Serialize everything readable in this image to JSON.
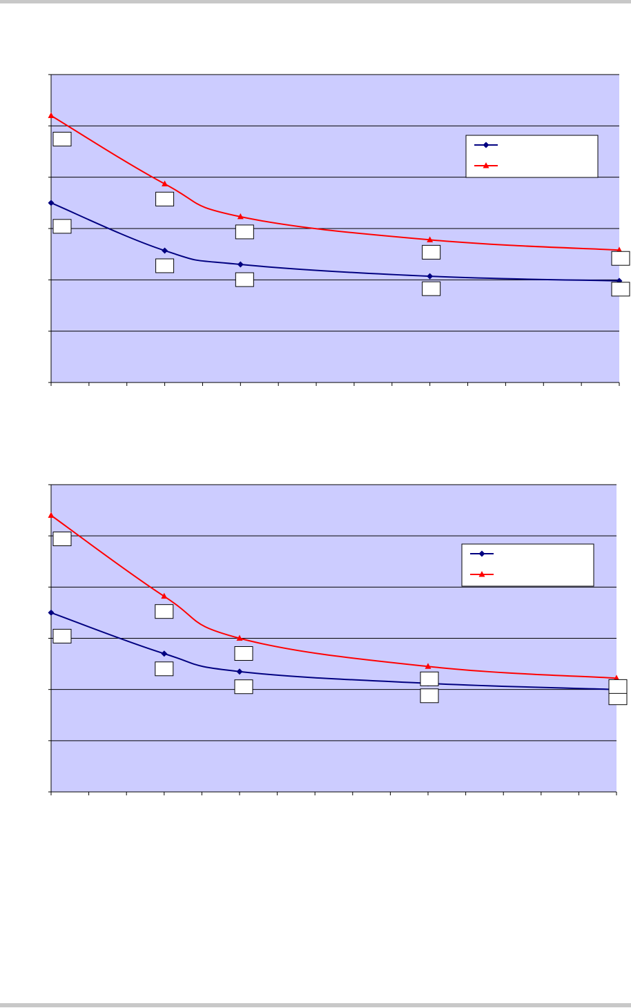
{
  "colors": {
    "plot_bg": "#ccccff",
    "series_blue": "#000080",
    "series_red": "#ff0000",
    "gridline": "#000000"
  },
  "chart_data": [
    {
      "type": "line",
      "title": "",
      "xlabel": "",
      "ylabel": "",
      "x": [
        0,
        3,
        5,
        10,
        15
      ],
      "xlim": [
        0,
        15
      ],
      "ylim": [
        0,
        6
      ],
      "x_minor_ticks": 1,
      "y_ticks": [
        0,
        1,
        2,
        3,
        4,
        5,
        6
      ],
      "grid": true,
      "legend_position": "top-right",
      "series": [
        {
          "name": "",
          "color": "#000080",
          "marker": "diamond",
          "values": [
            3.5,
            2.57,
            2.3,
            2.07,
            1.98
          ]
        },
        {
          "name": "",
          "color": "#ff0000",
          "marker": "triangle",
          "values": [
            5.2,
            3.87,
            3.23,
            2.78,
            2.58
          ]
        }
      ]
    },
    {
      "type": "line",
      "title": "",
      "xlabel": "",
      "ylabel": "",
      "x": [
        0,
        3,
        5,
        10,
        15
      ],
      "xlim": [
        0,
        15
      ],
      "ylim": [
        0,
        6
      ],
      "x_minor_ticks": 1,
      "y_ticks": [
        0,
        1,
        2,
        3,
        4,
        5,
        6
      ],
      "grid": true,
      "legend_position": "top-right",
      "series": [
        {
          "name": "",
          "color": "#000080",
          "marker": "diamond",
          "values": [
            3.5,
            2.7,
            2.35,
            2.12,
            2.0
          ]
        },
        {
          "name": "",
          "color": "#ff0000",
          "marker": "triangle",
          "values": [
            5.4,
            3.82,
            3.0,
            2.45,
            2.22
          ]
        }
      ]
    }
  ]
}
